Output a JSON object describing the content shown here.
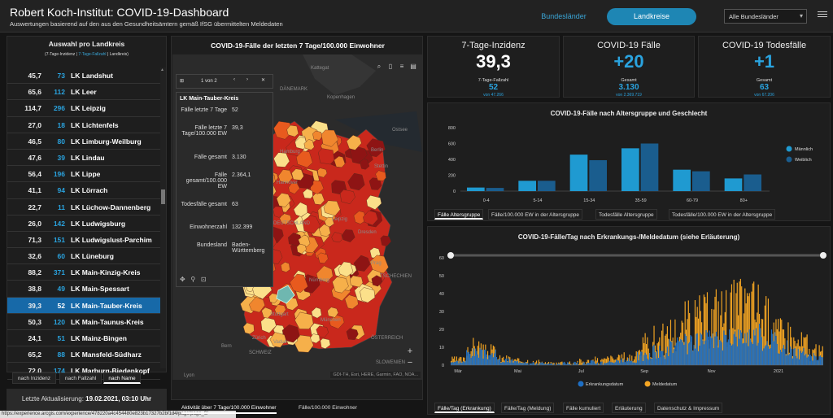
{
  "header": {
    "title": "Robert Koch-Institut: COVID-19-Dashboard",
    "subtitle": "Auswertungen basierend auf den aus den Gesundheitsämtern gemäß IfSG übermittelten Meldedaten",
    "btn_bundeslaender": "Bundesländer",
    "btn_landkreise": "Landkreise",
    "select_value": "Alle Bundesländer"
  },
  "left": {
    "heading": "Auswahl pro Landkreis",
    "sub_pre": "(7-Tage-Inzidenz | ",
    "sub_hl": "7-Tage-Fallzahl",
    "sub_post": " | Landkreis)",
    "rows": [
      {
        "inz": "45,7",
        "cnt": "73",
        "name": "LK Landshut"
      },
      {
        "inz": "65,6",
        "cnt": "112",
        "name": "LK Leer"
      },
      {
        "inz": "114,7",
        "cnt": "296",
        "name": "LK Leipzig"
      },
      {
        "inz": "27,0",
        "cnt": "18",
        "name": "LK Lichtenfels"
      },
      {
        "inz": "46,5",
        "cnt": "80",
        "name": "LK Limburg-Weilburg"
      },
      {
        "inz": "47,6",
        "cnt": "39",
        "name": "LK Lindau"
      },
      {
        "inz": "56,4",
        "cnt": "196",
        "name": "LK Lippe"
      },
      {
        "inz": "41,1",
        "cnt": "94",
        "name": "LK Lörrach"
      },
      {
        "inz": "22,7",
        "cnt": "11",
        "name": "LK Lüchow-Dannenberg"
      },
      {
        "inz": "26,0",
        "cnt": "142",
        "name": "LK Ludwigsburg"
      },
      {
        "inz": "71,3",
        "cnt": "151",
        "name": "LK Ludwigslust-Parchim"
      },
      {
        "inz": "32,6",
        "cnt": "60",
        "name": "LK Lüneburg"
      },
      {
        "inz": "88,2",
        "cnt": "371",
        "name": "LK Main-Kinzig-Kreis"
      },
      {
        "inz": "38,8",
        "cnt": "49",
        "name": "LK Main-Spessart"
      },
      {
        "inz": "39,3",
        "cnt": "52",
        "name": "LK Main-Tauber-Kreis"
      },
      {
        "inz": "50,3",
        "cnt": "120",
        "name": "LK Main-Taunus-Kreis"
      },
      {
        "inz": "24,1",
        "cnt": "51",
        "name": "LK Mainz-Bingen"
      },
      {
        "inz": "65,2",
        "cnt": "88",
        "name": "LK Mansfeld-Südharz"
      },
      {
        "inz": "72,0",
        "cnt": "174",
        "name": "LK Marburg-Biedenkopf"
      }
    ],
    "sort": [
      "nach Inzidenz",
      "nach Fallzahl",
      "nach Name"
    ],
    "update_label": "Letzte Aktualisierung:",
    "update_value": "19.02.2021, 03:10 Uhr"
  },
  "url": "https://experience.arcgis.com/experience/478220a4c454480e823b17327b2bf1d4/page/page_0/",
  "map": {
    "title": "COVID-19-Fälle der letzten 7 Tage/100.000 Einwohner",
    "nav": "1 von 2",
    "popup_title": "LK Main-Tauber-Kreis",
    "popup": [
      {
        "k": "Fälle letzte 7 Tage",
        "v": "52"
      },
      {
        "k": "Fälle letzte 7 Tage/100.000 EW",
        "v": "39,3"
      },
      {
        "k": "Fälle gesamt",
        "v": "3.130"
      },
      {
        "k": "Fälle gesamt/100.000 EW",
        "v": "2.364,1"
      },
      {
        "k": "Todesfälle gesamt",
        "v": "63"
      },
      {
        "k": "Einwohnerzahl",
        "v": "132.399"
      },
      {
        "k": "Bundesland",
        "v": "Baden-Württemberg"
      }
    ],
    "labels": [
      "Kattegat",
      "DÄNEMARK",
      "Kopenhagen",
      "Ostsee",
      "Hamburg",
      "Berlin",
      "Stettin",
      "Hannover",
      "Leipzig",
      "Dresden",
      "DEUTSCHLAND",
      "Luxemburg",
      "Prag",
      "Nürnberg",
      "TSCHECHIEN",
      "Stuttgart",
      "München",
      "Zürich",
      "Vaduz",
      "Bern",
      "SCHWEIZ",
      "ÖSTERREICH",
      "SLOWENIEN",
      "Lyon",
      "Amsterdam"
    ],
    "attribution": "GDI-TH, Esri, HERE, Garmin, FAO, NOA...",
    "tabs": [
      "Aktivität über 7 Tage/100.000 Einwohner",
      "Fälle/100.000 Einwohner"
    ]
  },
  "cards": [
    {
      "title": "7-Tage-Inzidenz",
      "value": "39,3",
      "sublabel": "7-Tage-Fallzahl",
      "subvalue": "52",
      "foot": "von 47.266",
      "color": "#fff"
    },
    {
      "title": "COVID-19 Fälle",
      "value": "+20",
      "sublabel": "Gesamt",
      "subvalue": "3.130",
      "foot": "von 2.369.719",
      "color": "#2aa3df"
    },
    {
      "title": "COVID-19 Todesfälle",
      "value": "+1",
      "sublabel": "Gesamt",
      "subvalue": "63",
      "foot": "von 67.206",
      "color": "#2aa3df"
    }
  ],
  "age_chart": {
    "title": "COVID-19-Fälle nach Altersgruppe und Geschlecht",
    "tabs": [
      "Fälle Altersgruppe",
      "Fälle/100.000 EW in der Altersgruppe",
      "Todesfälle Altersgruppe",
      "Todesfälle/100.000 EW in der Altersgruppe"
    ]
  },
  "daily_chart": {
    "title": "COVID-19-Fälle/Tag nach Erkrankungs-/Meldedatum (siehe Erläuterung)",
    "tabs": [
      "Fälle/Tag (Erkrankung)",
      "Fälle/Tag (Meldung)",
      "Fälle kumuliert",
      "Erläuterung",
      "Datenschutz & Impressum"
    ]
  },
  "chart_data": [
    {
      "type": "bar",
      "title": "COVID-19-Fälle nach Altersgruppe und Geschlecht",
      "categories": [
        "0-4",
        "5-14",
        "15-34",
        "35-59",
        "60-79",
        "80+"
      ],
      "series": [
        {
          "name": "Männlich",
          "values": [
            45,
            130,
            460,
            540,
            270,
            160
          ]
        },
        {
          "name": "Weiblich",
          "values": [
            40,
            130,
            390,
            600,
            250,
            210
          ]
        }
      ],
      "ylim": [
        0,
        800
      ],
      "yticks": [
        0,
        200,
        400,
        600,
        800
      ],
      "legend": "right",
      "colors": [
        "#1f9ad1",
        "#1a5d8e"
      ]
    },
    {
      "type": "bar",
      "title": "COVID-19-Fälle/Tag nach Erkrankungs-/Meldedatum (siehe Erläuterung)",
      "x_ticks": [
        "Mär",
        "Mai",
        "Jul",
        "Sep",
        "Nov",
        "2021"
      ],
      "ylim": [
        0,
        60
      ],
      "yticks": [
        0,
        10,
        20,
        30,
        40,
        50,
        60
      ],
      "series": [
        {
          "name": "Erkrankungsdatum",
          "color": "#1e6fc4"
        },
        {
          "name": "Meldedatum",
          "color": "#f5a623"
        }
      ],
      "legend": "bottom",
      "segments": [
        {
          "days": 14,
          "e": [
            1,
            3
          ],
          "m": [
            1,
            5
          ]
        },
        {
          "days": 14,
          "e": [
            4,
            10
          ],
          "m": [
            4,
            16
          ]
        },
        {
          "days": 14,
          "e": [
            3,
            9
          ],
          "m": [
            3,
            12
          ]
        },
        {
          "days": 14,
          "e": [
            1,
            4
          ],
          "m": [
            1,
            6
          ]
        },
        {
          "days": 14,
          "e": [
            1,
            3
          ],
          "m": [
            1,
            4
          ]
        },
        {
          "days": 14,
          "e": [
            0,
            2
          ],
          "m": [
            0,
            3
          ]
        },
        {
          "days": 14,
          "e": [
            0,
            1
          ],
          "m": [
            0,
            2
          ]
        },
        {
          "days": 14,
          "e": [
            0,
            2
          ],
          "m": [
            0,
            3
          ]
        },
        {
          "days": 14,
          "e": [
            0,
            2
          ],
          "m": [
            0,
            4
          ]
        },
        {
          "days": 14,
          "e": [
            0,
            3
          ],
          "m": [
            0,
            5
          ]
        },
        {
          "days": 14,
          "e": [
            1,
            3
          ],
          "m": [
            1,
            6
          ]
        },
        {
          "days": 14,
          "e": [
            1,
            4
          ],
          "m": [
            1,
            8
          ]
        },
        {
          "days": 14,
          "e": [
            2,
            8
          ],
          "m": [
            2,
            18
          ]
        },
        {
          "days": 14,
          "e": [
            3,
            12
          ],
          "m": [
            4,
            24
          ]
        },
        {
          "days": 14,
          "e": [
            5,
            16
          ],
          "m": [
            6,
            30
          ]
        },
        {
          "days": 14,
          "e": [
            6,
            18
          ],
          "m": [
            8,
            38
          ]
        },
        {
          "days": 14,
          "e": [
            7,
            20
          ],
          "m": [
            8,
            42
          ]
        },
        {
          "days": 14,
          "e": [
            8,
            20
          ],
          "m": [
            10,
            48
          ]
        },
        {
          "days": 14,
          "e": [
            10,
            22
          ],
          "m": [
            12,
            50
          ]
        },
        {
          "days": 14,
          "e": [
            10,
            24
          ],
          "m": [
            12,
            52
          ]
        },
        {
          "days": 14,
          "e": [
            8,
            20
          ],
          "m": [
            10,
            40
          ]
        },
        {
          "days": 14,
          "e": [
            5,
            14
          ],
          "m": [
            6,
            28
          ]
        },
        {
          "days": 14,
          "e": [
            3,
            10
          ],
          "m": [
            4,
            20
          ]
        },
        {
          "days": 14,
          "e": [
            2,
            7
          ],
          "m": [
            2,
            12
          ]
        }
      ]
    }
  ]
}
